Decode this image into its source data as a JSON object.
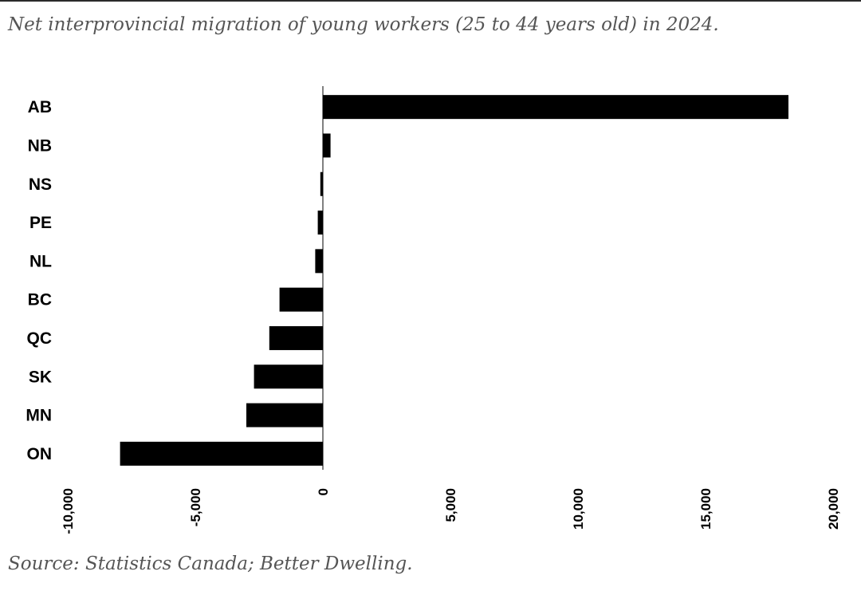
{
  "title": "Net interprovincial migration of young workers (25 to 44 years old) in 2024.",
  "source": "Source: Statistics Canada; Better Dwelling.",
  "colors": {
    "bar": "#000000",
    "axis": "#000000",
    "title_text": "#555555",
    "rule": "#2a2a2a"
  },
  "chart_data": {
    "type": "bar",
    "orientation": "horizontal",
    "categories": [
      "AB",
      "NB",
      "NS",
      "PE",
      "NL",
      "BC",
      "QC",
      "SK",
      "MN",
      "ON"
    ],
    "values": [
      18250,
      300,
      -100,
      -200,
      -300,
      -1700,
      -2100,
      -2700,
      -3000,
      -7950
    ],
    "xlim": [
      -10000,
      20000
    ],
    "xticks": [
      -10000,
      -5000,
      0,
      5000,
      10000,
      15000,
      20000
    ],
    "xtick_labels": [
      "-10,000",
      "-5,000",
      "0",
      "5,000",
      "10,000",
      "15,000",
      "20,000"
    ],
    "xlabel": "",
    "ylabel": "",
    "grid": false,
    "legend": "none"
  }
}
